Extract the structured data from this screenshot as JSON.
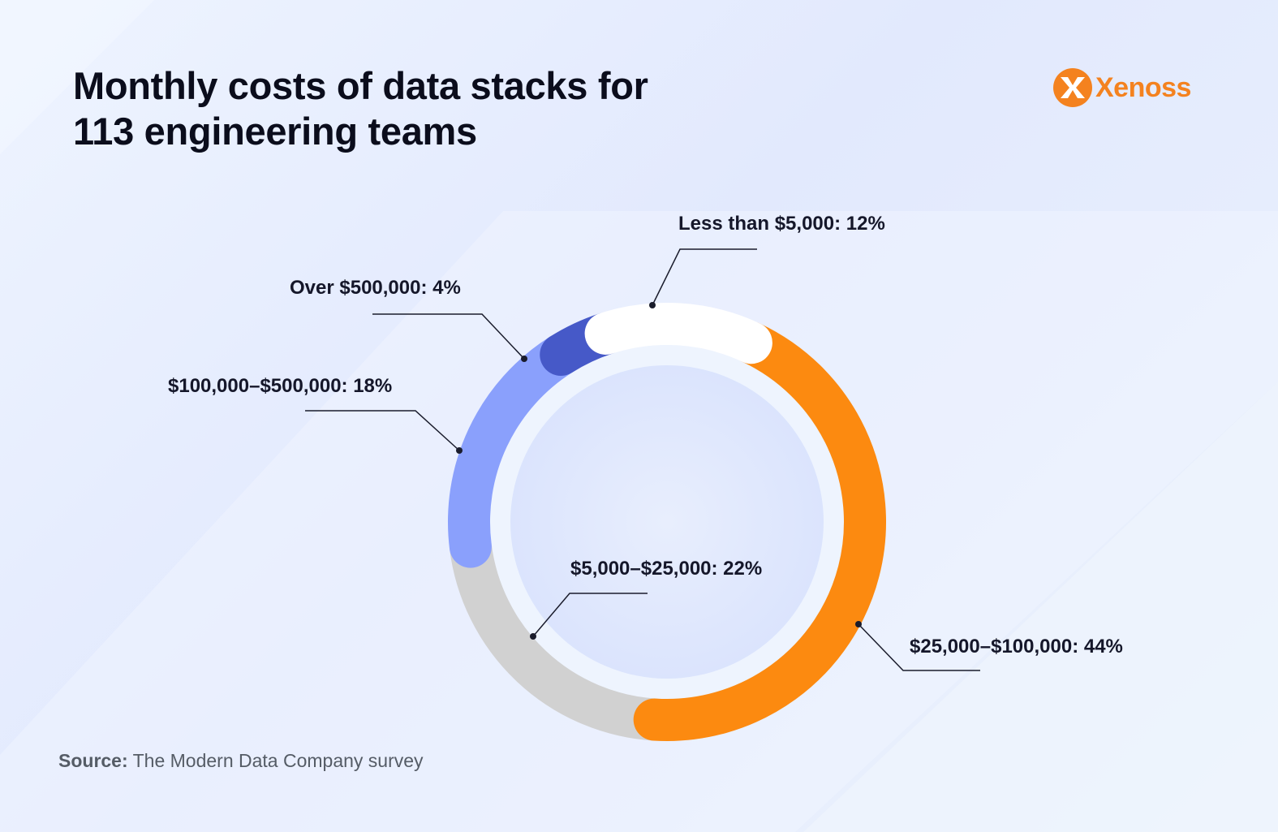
{
  "header": {
    "title": "Monthly costs of data stacks for\n113 engineering teams"
  },
  "brand": {
    "name": "Xenoss",
    "color": "#f4821f"
  },
  "chart_data": {
    "type": "pie",
    "variant": "donut",
    "title": "Monthly costs of data stacks for 113 engineering teams",
    "unit": "%",
    "slices": [
      {
        "key": "less_5k",
        "label": "Less than $5,000: 12%",
        "category": "Less than $5,000",
        "value": 12,
        "color": "#ffffff"
      },
      {
        "key": "k25_100",
        "label": "$25,000–$100,000: 44%",
        "category": "$25,000–$100,000",
        "value": 44,
        "color": "#fc8a10"
      },
      {
        "key": "k5_25",
        "label": "$5,000–$25,000: 22%",
        "category": "$5,000–$25,000",
        "value": 22,
        "color": "#d1d1d1"
      },
      {
        "key": "k100_500",
        "label": "$100,000–$500,000: 18%",
        "category": "$100,000–$500,000",
        "value": 18,
        "color": "#8aa0fc"
      },
      {
        "key": "over_500k",
        "label": "Over $500,000: 4%",
        "category": "Over $500,000",
        "value": 4,
        "color": "#4659c8"
      }
    ]
  },
  "source": {
    "prefix": "Source:",
    "text": " The Modern Data Company survey"
  }
}
